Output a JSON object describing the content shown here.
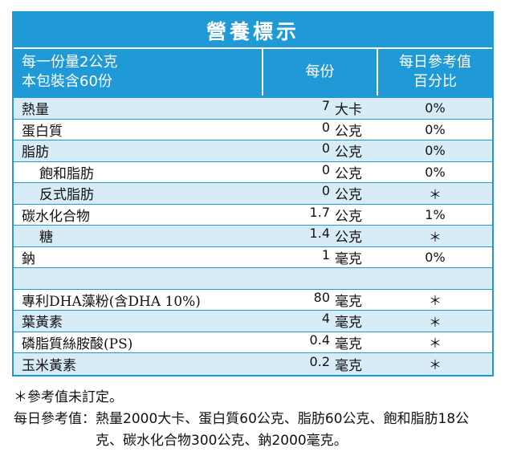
{
  "title": "營養標示",
  "header": {
    "serving_line1": "每一份量2公克",
    "serving_line2": "本包裝含60份",
    "per_serving": "每份",
    "dv_line1": "每日參考值",
    "dv_line2": "百分比"
  },
  "colors": {
    "accent": "#1f9ad6",
    "shade": "#d8ecf8"
  },
  "rows": [
    {
      "name": "熱量",
      "amount": "7",
      "unit": "大卡",
      "dv": "0%"
    },
    {
      "name": "蛋白質",
      "amount": "0",
      "unit": "公克",
      "dv": "0%"
    },
    {
      "name": "脂肪",
      "amount": "0",
      "unit": "公克",
      "dv": "0%"
    },
    {
      "name": "飽和脂肪",
      "amount": "0",
      "unit": "公克",
      "dv": "0%"
    },
    {
      "name": "反式脂肪",
      "amount": "0",
      "unit": "公克",
      "dv": "＊"
    },
    {
      "name": "碳水化合物",
      "amount": "1.7",
      "unit": "公克",
      "dv": "1%"
    },
    {
      "name": "糖",
      "amount": "1.4",
      "unit": "公克",
      "dv": "＊"
    },
    {
      "name": "鈉",
      "amount": "1",
      "unit": "毫克",
      "dv": "0%"
    },
    {
      "name": "",
      "amount": "",
      "unit": "",
      "dv": ""
    },
    {
      "name": "專利DHA藻粉(含DHA 10%)",
      "amount": "80",
      "unit": "毫克",
      "dv": "＊"
    },
    {
      "name": "葉黃素",
      "amount": "4",
      "unit": "毫克",
      "dv": "＊"
    },
    {
      "name": "磷脂質絲胺酸(PS)",
      "amount": "0.4",
      "unit": "毫克",
      "dv": "＊"
    },
    {
      "name": "玉米黃素",
      "amount": "0.2",
      "unit": "毫克",
      "dv": "＊"
    }
  ],
  "notes": {
    "footnote": "＊參考值未訂定。",
    "reference_label": "每日參考值：",
    "reference_text": "熱量2000大卡、蛋白質60公克、脂肪60公克、飽和脂肪18公克、碳水化合物300公克、鈉2000毫克。"
  }
}
